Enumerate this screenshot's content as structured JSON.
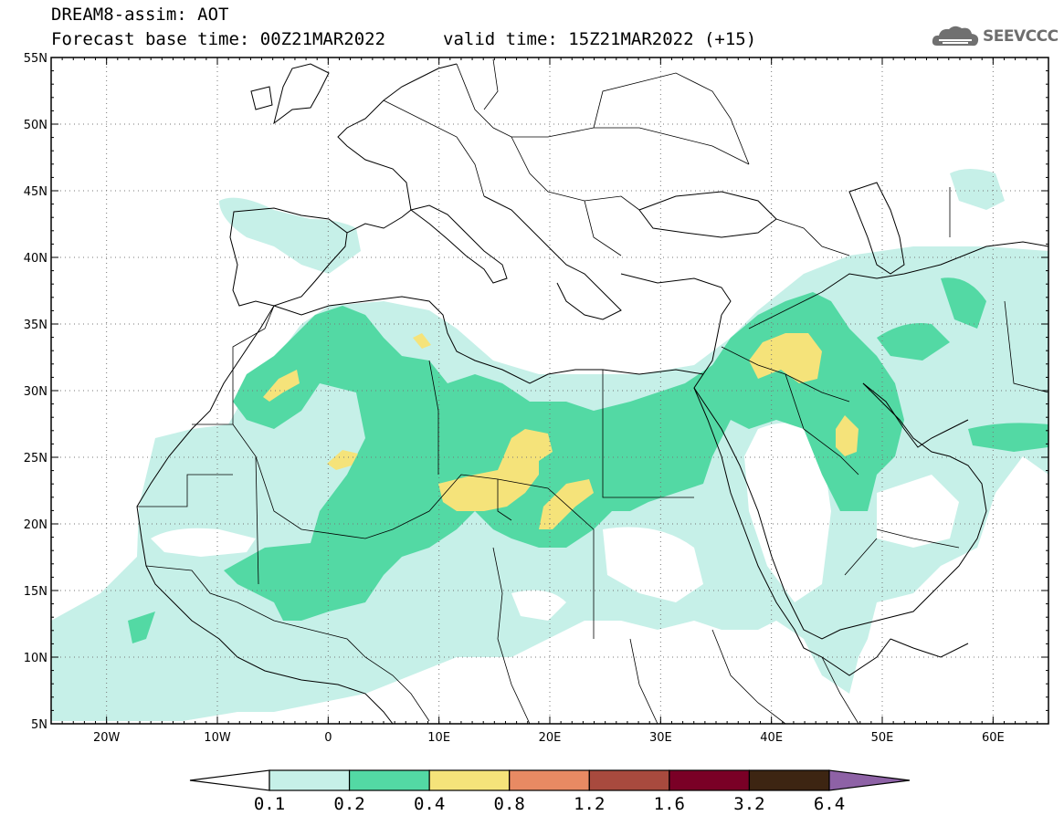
{
  "title": {
    "line1": "DREAM8-assim: AOT",
    "line2": "Forecast base time: 00Z21MAR2022",
    "valid": "valid time: 15Z21MAR2022 (+15)"
  },
  "logo": {
    "text": "SEEVCCC",
    "icon": "cloud-logo-icon"
  },
  "map": {
    "lon_range": [
      -25,
      65
    ],
    "lat_range": [
      5,
      55
    ],
    "lat_ticks": [
      "55N",
      "50N",
      "45N",
      "40N",
      "35N",
      "30N",
      "25N",
      "20N",
      "15N",
      "10N",
      "5N"
    ],
    "lon_ticks": [
      "20W",
      "10W",
      "0",
      "10E",
      "20E",
      "30E",
      "40E",
      "50E",
      "60E"
    ],
    "grid": "dotted"
  },
  "legend": {
    "labels": [
      "0.1",
      "0.2",
      "0.4",
      "0.8",
      "1.2",
      "1.6",
      "3.2",
      "6.4"
    ],
    "colors": [
      "#ffffff",
      "#c6f0e8",
      "#53d9a4",
      "#f5e37a",
      "#e88a63",
      "#a84a3e",
      "#7a0026",
      "#3d2512",
      "#8e62a6"
    ]
  }
}
